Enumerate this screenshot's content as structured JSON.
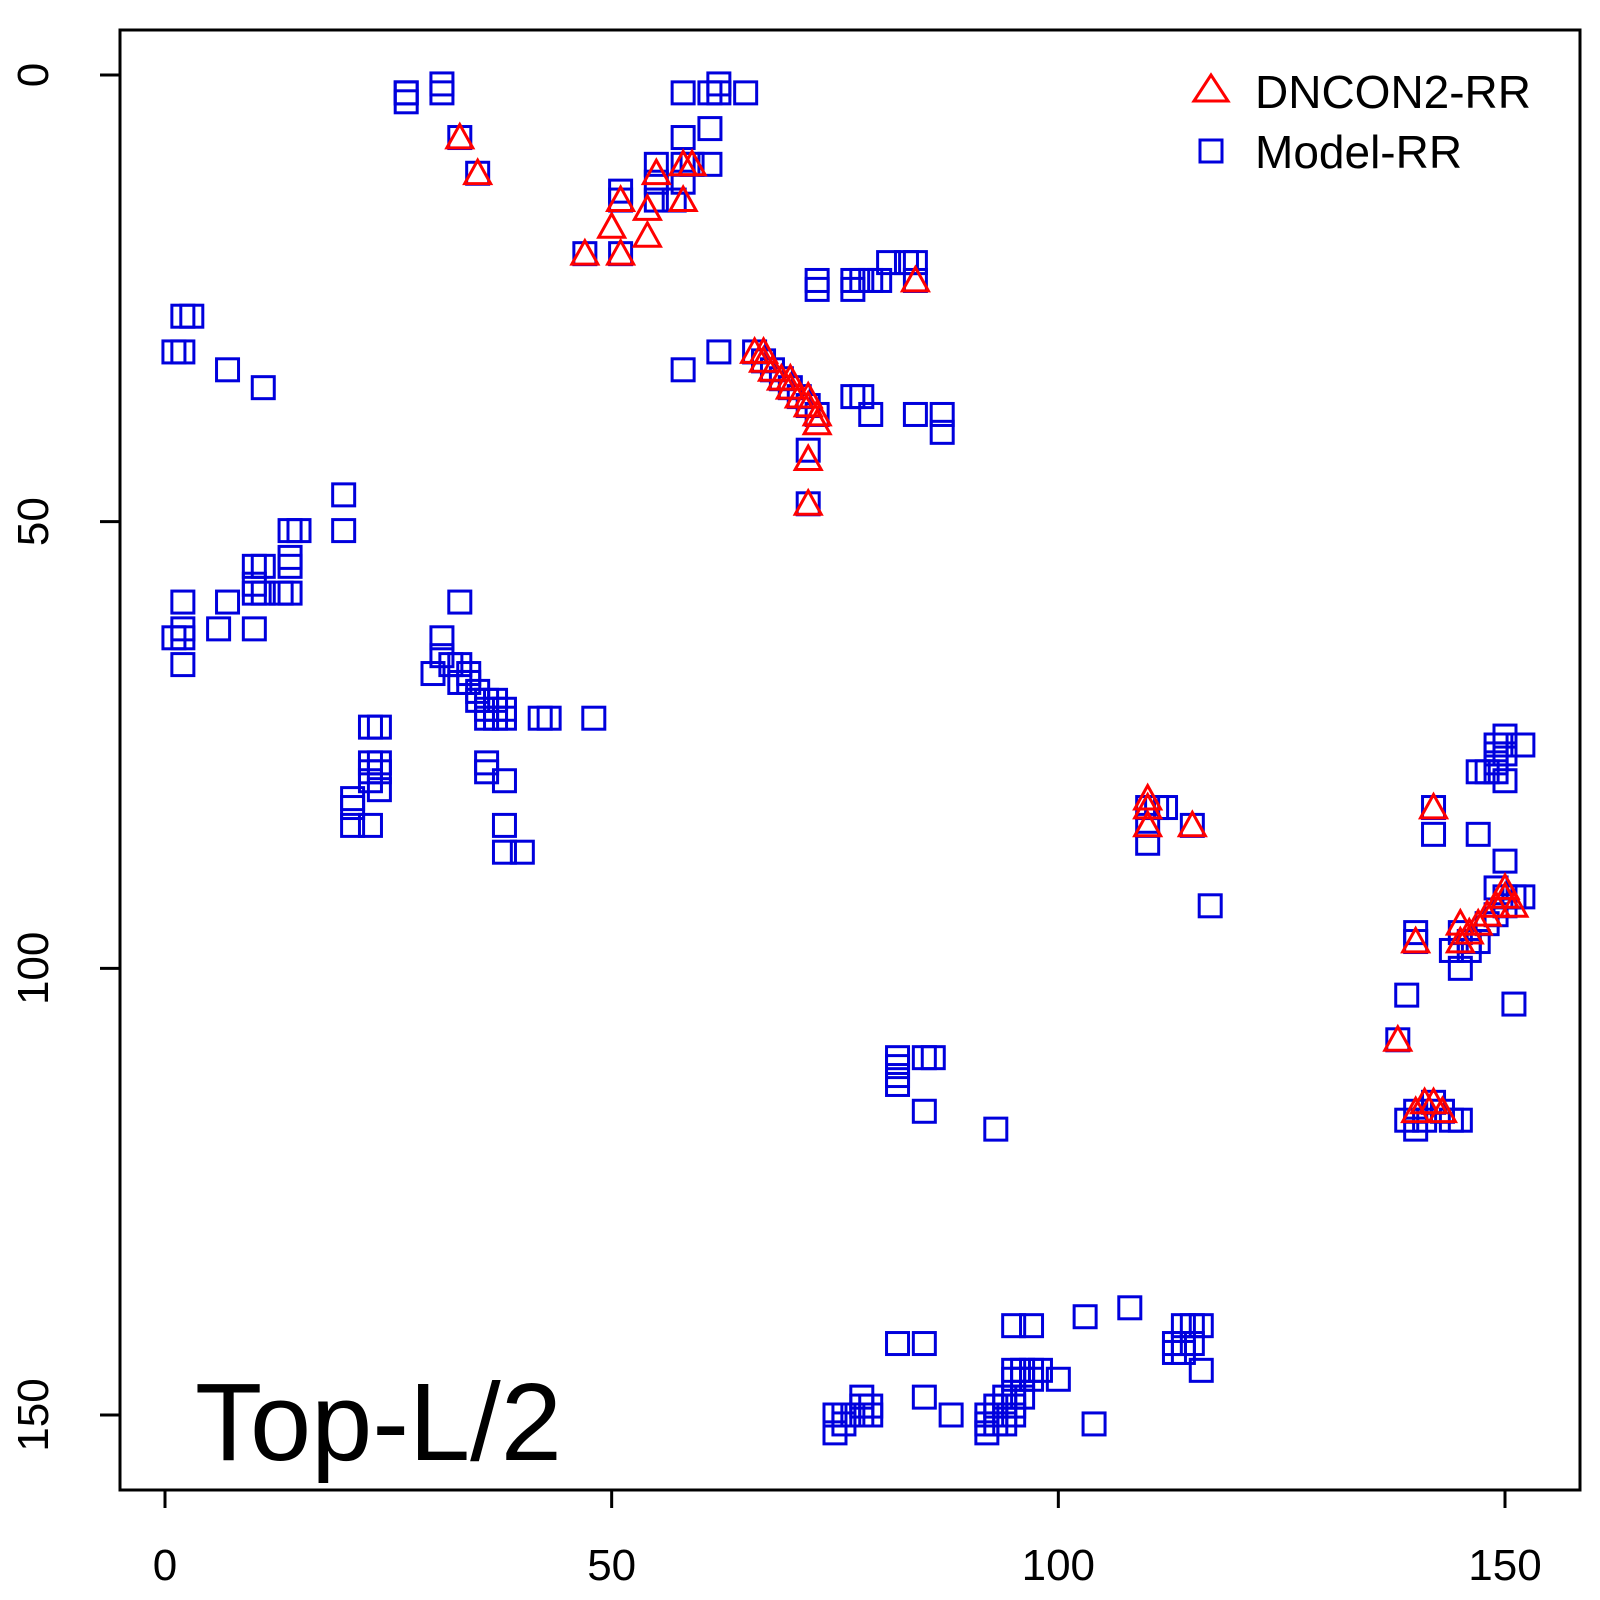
{
  "chart_data": {
    "type": "scatter",
    "title": "",
    "xlabel": "",
    "ylabel": "",
    "xlim": [
      -5,
      158
    ],
    "ylim": [
      157,
      -5
    ],
    "y_reversed": true,
    "x_ticks": [
      0,
      50,
      100,
      150
    ],
    "y_ticks": [
      0,
      50,
      100,
      150
    ],
    "grid": false,
    "legend_position": "top-right",
    "annotation": "Top-L/2",
    "series": [
      {
        "name": "DNCON2-RR",
        "marker": "triangle",
        "color": "#ff0000",
        "points": [
          [
            33,
            7
          ],
          [
            35,
            11
          ],
          [
            47,
            20
          ],
          [
            50,
            17
          ],
          [
            51,
            14
          ],
          [
            51,
            20
          ],
          [
            54,
            18
          ],
          [
            54,
            15
          ],
          [
            55,
            11
          ],
          [
            58,
            14
          ],
          [
            58,
            10
          ],
          [
            59,
            10
          ],
          [
            66,
            31
          ],
          [
            67,
            32
          ],
          [
            67,
            31
          ],
          [
            68,
            33
          ],
          [
            69,
            34
          ],
          [
            70,
            34
          ],
          [
            70,
            35
          ],
          [
            71,
            36
          ],
          [
            72,
            36
          ],
          [
            72,
            37
          ],
          [
            73,
            38
          ],
          [
            73,
            39
          ],
          [
            72,
            43
          ],
          [
            72,
            48
          ],
          [
            84,
            23
          ],
          [
            110,
            81
          ],
          [
            110,
            82
          ],
          [
            110,
            84
          ],
          [
            115,
            84
          ],
          [
            140,
            97
          ],
          [
            138,
            108
          ],
          [
            142,
            82
          ],
          [
            140,
            116
          ],
          [
            141,
            115
          ],
          [
            142,
            115
          ],
          [
            143,
            116
          ],
          [
            145,
            95
          ],
          [
            145,
            97
          ],
          [
            146,
            96
          ],
          [
            147,
            95
          ],
          [
            148,
            94
          ],
          [
            149,
            93
          ],
          [
            150,
            92
          ],
          [
            150,
            91
          ],
          [
            151,
            93
          ]
        ]
      },
      {
        "name": "Model-RR",
        "marker": "square",
        "color": "#0000dd",
        "points": [
          [
            27,
            2
          ],
          [
            27,
            3
          ],
          [
            31,
            1
          ],
          [
            31,
            2
          ],
          [
            33,
            7
          ],
          [
            35,
            11
          ],
          [
            61,
            2
          ],
          [
            62,
            1
          ],
          [
            62,
            2
          ],
          [
            65,
            2
          ],
          [
            58,
            2
          ],
          [
            58,
            7
          ],
          [
            61,
            6
          ],
          [
            61,
            10
          ],
          [
            55,
            10
          ],
          [
            58,
            10
          ],
          [
            59,
            10
          ],
          [
            55,
            12
          ],
          [
            51,
            14
          ],
          [
            55,
            14
          ],
          [
            57,
            14
          ],
          [
            58,
            12
          ],
          [
            51,
            13
          ],
          [
            47,
            20
          ],
          [
            51,
            20
          ],
          [
            27,
            2
          ],
          [
            73,
            23
          ],
          [
            73,
            24
          ],
          [
            77,
            23
          ],
          [
            77,
            24
          ],
          [
            78,
            23
          ],
          [
            79,
            23
          ],
          [
            80,
            23
          ],
          [
            81,
            21
          ],
          [
            83,
            21
          ],
          [
            84,
            21
          ],
          [
            84,
            23
          ],
          [
            1,
            31
          ],
          [
            2,
            31
          ],
          [
            2,
            27
          ],
          [
            3,
            27
          ],
          [
            7,
            33
          ],
          [
            11,
            35
          ],
          [
            58,
            33
          ],
          [
            62,
            31
          ],
          [
            66,
            31
          ],
          [
            67,
            32
          ],
          [
            68,
            33
          ],
          [
            69,
            34
          ],
          [
            70,
            35
          ],
          [
            71,
            36
          ],
          [
            72,
            37
          ],
          [
            73,
            38
          ],
          [
            72,
            42
          ],
          [
            72,
            48
          ],
          [
            77,
            36
          ],
          [
            78,
            36
          ],
          [
            79,
            38
          ],
          [
            84,
            38
          ],
          [
            87,
            38
          ],
          [
            87,
            40
          ],
          [
            20,
            47
          ],
          [
            20,
            51
          ],
          [
            14,
            51
          ],
          [
            15,
            51
          ],
          [
            14,
            54
          ],
          [
            14,
            55
          ],
          [
            10,
            55
          ],
          [
            11,
            55
          ],
          [
            10,
            57
          ],
          [
            11,
            58
          ],
          [
            10,
            58
          ],
          [
            13,
            58
          ],
          [
            14,
            58
          ],
          [
            2,
            59
          ],
          [
            7,
            59
          ],
          [
            33,
            59
          ],
          [
            2,
            62
          ],
          [
            6,
            62
          ],
          [
            10,
            62
          ],
          [
            1,
            63
          ],
          [
            2,
            63
          ],
          [
            2,
            66
          ],
          [
            31,
            63
          ],
          [
            31,
            65
          ],
          [
            30,
            67
          ],
          [
            32,
            66
          ],
          [
            33,
            66
          ],
          [
            34,
            67
          ],
          [
            33,
            68
          ],
          [
            34,
            68
          ],
          [
            35,
            69
          ],
          [
            35,
            70
          ],
          [
            36,
            70
          ],
          [
            37,
            70
          ],
          [
            36,
            71
          ],
          [
            37,
            71
          ],
          [
            38,
            71
          ],
          [
            36,
            72
          ],
          [
            37,
            72
          ],
          [
            38,
            72
          ],
          [
            42,
            72
          ],
          [
            43,
            72
          ],
          [
            48,
            72
          ],
          [
            23,
            73
          ],
          [
            24,
            73
          ],
          [
            23,
            77
          ],
          [
            24,
            77
          ],
          [
            23,
            78
          ],
          [
            24,
            78
          ],
          [
            23,
            79
          ],
          [
            24,
            80
          ],
          [
            21,
            81
          ],
          [
            21,
            82
          ],
          [
            21,
            84
          ],
          [
            23,
            84
          ],
          [
            36,
            77
          ],
          [
            36,
            78
          ],
          [
            38,
            79
          ],
          [
            38,
            84
          ],
          [
            38,
            87
          ],
          [
            40,
            87
          ],
          [
            110,
            82
          ],
          [
            111,
            82
          ],
          [
            112,
            82
          ],
          [
            110,
            84
          ],
          [
            110,
            86
          ],
          [
            115,
            84
          ],
          [
            117,
            93
          ],
          [
            150,
            74
          ],
          [
            150,
            75
          ],
          [
            149,
            75
          ],
          [
            152,
            75
          ],
          [
            149,
            76
          ],
          [
            150,
            76
          ],
          [
            149,
            77
          ],
          [
            147,
            78
          ],
          [
            148,
            78
          ],
          [
            149,
            78
          ],
          [
            150,
            79
          ],
          [
            142,
            82
          ],
          [
            142,
            85
          ],
          [
            147,
            85
          ],
          [
            150,
            88
          ],
          [
            149,
            91
          ],
          [
            150,
            92
          ],
          [
            151,
            92
          ],
          [
            152,
            92
          ],
          [
            140,
            96
          ],
          [
            140,
            97
          ],
          [
            144,
            98
          ],
          [
            145,
            96
          ],
          [
            146,
            97
          ],
          [
            146,
            98
          ],
          [
            147,
            97
          ],
          [
            148,
            95
          ],
          [
            149,
            94
          ],
          [
            150,
            93
          ],
          [
            145,
            100
          ],
          [
            139,
            103
          ],
          [
            151,
            104
          ],
          [
            138,
            108
          ],
          [
            82,
            110
          ],
          [
            82,
            111
          ],
          [
            82,
            112
          ],
          [
            85,
            110
          ],
          [
            86,
            110
          ],
          [
            82,
            113
          ],
          [
            85,
            116
          ],
          [
            93,
            118
          ],
          [
            139,
            117
          ],
          [
            140,
            116
          ],
          [
            141,
            117
          ],
          [
            140,
            118
          ],
          [
            142,
            115
          ],
          [
            143,
            116
          ],
          [
            145,
            117
          ],
          [
            144,
            117
          ],
          [
            103,
            139
          ],
          [
            108,
            138
          ],
          [
            114,
            140
          ],
          [
            115,
            140
          ],
          [
            116,
            140
          ],
          [
            113,
            142
          ],
          [
            114,
            142
          ],
          [
            115,
            142
          ],
          [
            113,
            143
          ],
          [
            114,
            143
          ],
          [
            116,
            145
          ],
          [
            95,
            140
          ],
          [
            97,
            140
          ],
          [
            82,
            142
          ],
          [
            85,
            142
          ],
          [
            85,
            148
          ],
          [
            95,
            145
          ],
          [
            96,
            145
          ],
          [
            97,
            145
          ],
          [
            98,
            145
          ],
          [
            95,
            146
          ],
          [
            96,
            146
          ],
          [
            97,
            146
          ],
          [
            100,
            146
          ],
          [
            94,
            148
          ],
          [
            95,
            148
          ],
          [
            96,
            148
          ],
          [
            93,
            149
          ],
          [
            94,
            149
          ],
          [
            95,
            149
          ],
          [
            92,
            150
          ],
          [
            93,
            150
          ],
          [
            94,
            150
          ],
          [
            95,
            150
          ],
          [
            92,
            151
          ],
          [
            93,
            151
          ],
          [
            94,
            151
          ],
          [
            92,
            152
          ],
          [
            88,
            150
          ],
          [
            104,
            151
          ],
          [
            75,
            150
          ],
          [
            76,
            150
          ],
          [
            77,
            150
          ],
          [
            78,
            149
          ],
          [
            79,
            149
          ],
          [
            78,
            148
          ],
          [
            79,
            150
          ],
          [
            78,
            150
          ],
          [
            75,
            152
          ],
          [
            76,
            151
          ]
        ]
      }
    ]
  }
}
